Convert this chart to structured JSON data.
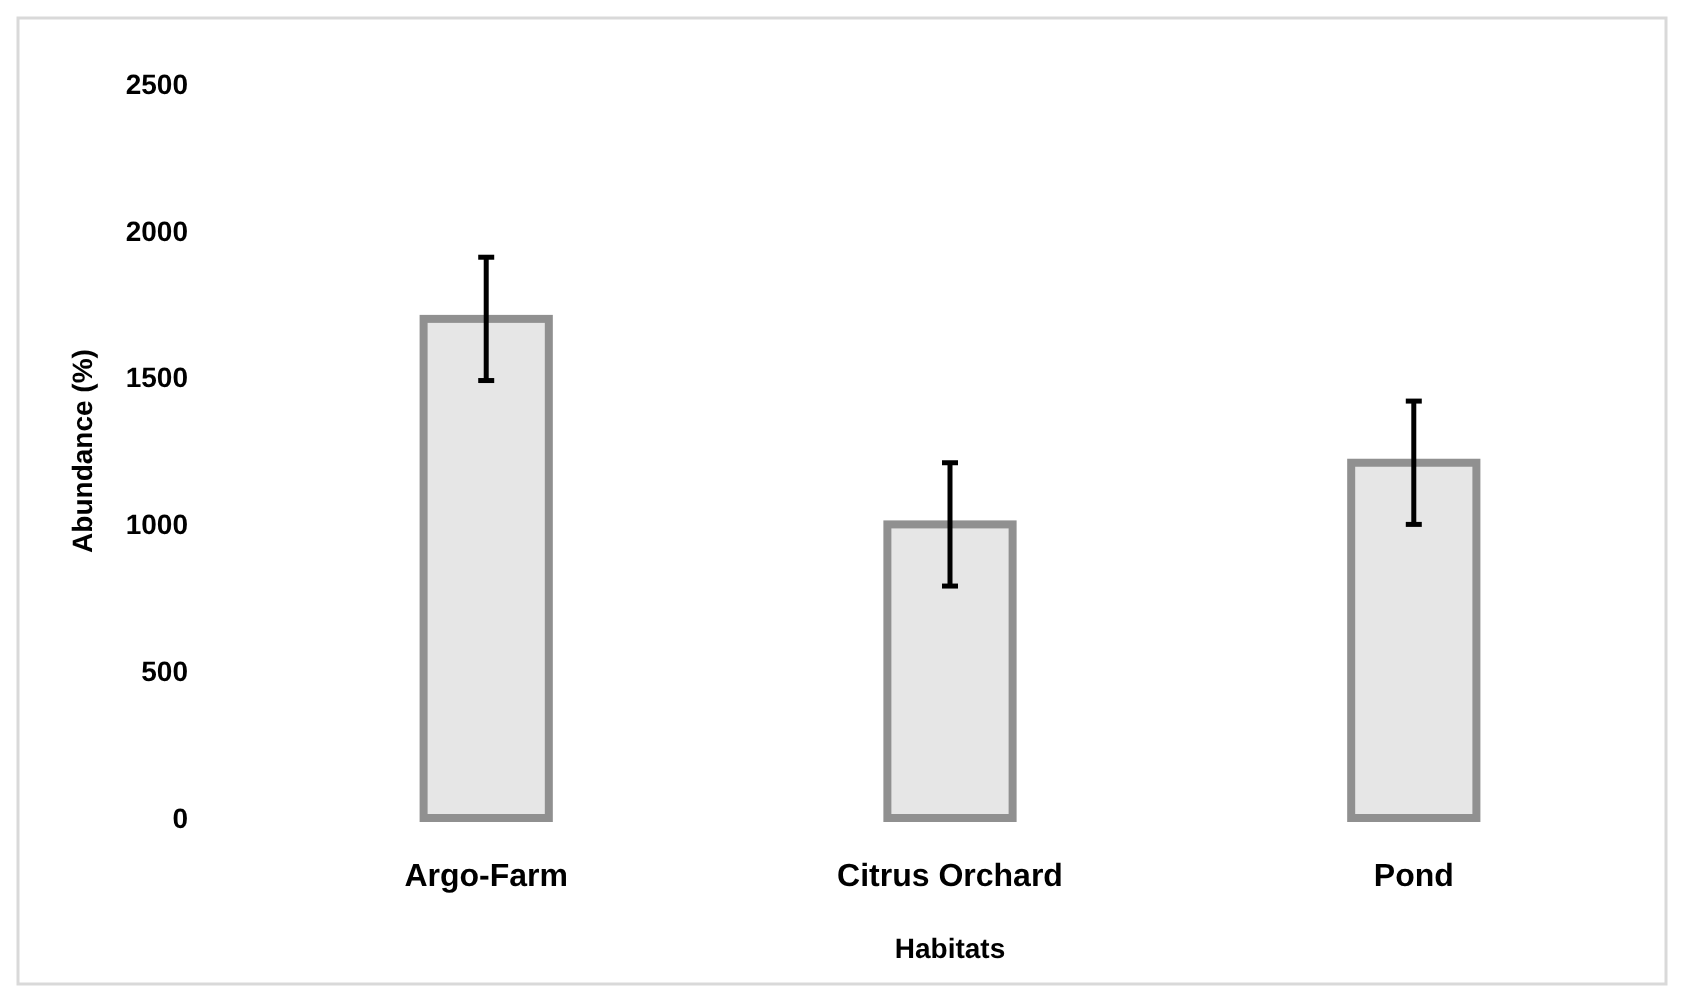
{
  "chart_data": {
    "type": "bar",
    "categories": [
      "Argo-Farm",
      "Citrus Orchard",
      "Pond"
    ],
    "values": [
      1700,
      1000,
      1210
    ],
    "errors": [
      210,
      210,
      210
    ],
    "color": "#e6e6e6",
    "xlabel": "Habitats",
    "ylabel": "Abundance (%)",
    "ylim": [
      0,
      2500
    ],
    "yticks": [
      0,
      500,
      1000,
      1500,
      2000,
      2500
    ],
    "grid": false
  }
}
